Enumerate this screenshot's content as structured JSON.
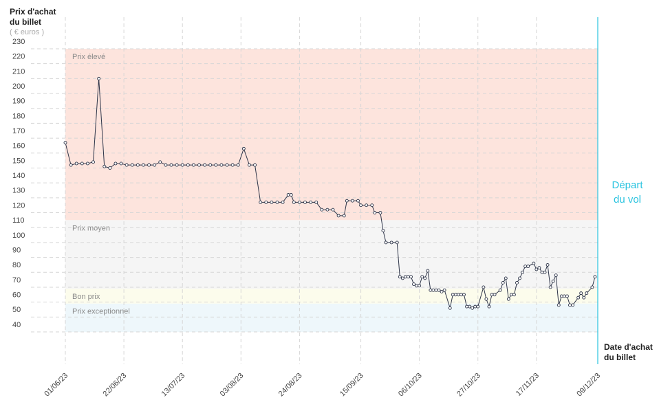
{
  "chart_data": {
    "type": "line",
    "y_label": [
      "Prix d'achat",
      "du billet"
    ],
    "y_unit": "( € euros )",
    "x_label": [
      "Date d'achat",
      "du billet"
    ],
    "ylim": [
      40,
      230
    ],
    "yticks": [
      40,
      50,
      60,
      70,
      80,
      90,
      100,
      110,
      120,
      130,
      140,
      150,
      160,
      170,
      180,
      190,
      200,
      210,
      220,
      230
    ],
    "xlim": [
      "01/06/23",
      "09/12/23"
    ],
    "xticks": [
      "01/06/23",
      "22/06/23",
      "13/07/23",
      "03/08/23",
      "24/08/23",
      "15/09/23",
      "06/10/23",
      "27/10/23",
      "17/11/23",
      "09/12/23"
    ],
    "grid": true,
    "color": "#2d3448",
    "bands": [
      {
        "label": "Prix élevé",
        "from": 115,
        "to": 230,
        "color": "#fde4dd"
      },
      {
        "label": "Prix moyen",
        "from": 69,
        "to": 115,
        "color": "#f5f5f5"
      },
      {
        "label": "Bon prix",
        "from": 59,
        "to": 69,
        "color": "#fcfcec"
      },
      {
        "label": "Prix exceptionnel",
        "from": 40,
        "to": 59,
        "color": "#eef7fb"
      }
    ],
    "departure": {
      "label": [
        "Départ",
        "du vol"
      ],
      "x": "09/12/23",
      "color": "#2bc4e0"
    },
    "x": [
      "01/06/23",
      "03/06/23",
      "05/06/23",
      "07/06/23",
      "09/06/23",
      "11/06/23",
      "13/06/23",
      "15/06/23",
      "17/06/23",
      "19/06/23",
      "21/06/23",
      "23/06/23",
      "25/06/23",
      "27/06/23",
      "29/06/23",
      "01/07/23",
      "03/07/23",
      "05/07/23",
      "07/07/23",
      "09/07/23",
      "11/07/23",
      "13/07/23",
      "15/07/23",
      "17/07/23",
      "19/07/23",
      "21/07/23",
      "23/07/23",
      "25/07/23",
      "27/07/23",
      "29/07/23",
      "31/07/23",
      "02/08/23",
      "04/08/23",
      "06/08/23",
      "08/08/23",
      "10/08/23",
      "12/08/23",
      "14/08/23",
      "16/08/23",
      "18/08/23",
      "20/08/23",
      "21/08/23",
      "22/08/23",
      "24/08/23",
      "26/08/23",
      "28/08/23",
      "30/08/23",
      "01/09/23",
      "03/09/23",
      "05/09/23",
      "07/09/23",
      "09/09/23",
      "10/09/23",
      "12/09/23",
      "14/09/23",
      "15/09/23",
      "17/09/23",
      "19/09/23",
      "20/09/23",
      "22/09/23",
      "23/09/23",
      "24/09/23",
      "26/09/23",
      "28/09/23",
      "29/09/23",
      "30/09/23",
      "01/10/23",
      "02/10/23",
      "03/10/23",
      "04/10/23",
      "05/10/23",
      "06/10/23",
      "07/10/23",
      "08/10/23",
      "09/10/23",
      "10/10/23",
      "11/10/23",
      "12/10/23",
      "13/10/23",
      "14/10/23",
      "15/10/23",
      "17/10/23",
      "18/10/23",
      "19/10/23",
      "20/10/23",
      "21/10/23",
      "22/10/23",
      "23/10/23",
      "24/10/23",
      "25/10/23",
      "26/10/23",
      "27/10/23",
      "29/10/23",
      "30/10/23",
      "31/10/23",
      "01/11/23",
      "02/11/23",
      "04/11/23",
      "05/11/23",
      "06/11/23",
      "07/11/23",
      "08/11/23",
      "09/11/23",
      "10/11/23",
      "11/11/23",
      "12/11/23",
      "13/11/23",
      "14/11/23",
      "16/11/23",
      "17/11/23",
      "18/11/23",
      "19/11/23",
      "20/11/23",
      "21/11/23",
      "22/11/23",
      "23/11/23",
      "24/11/23",
      "25/11/23",
      "26/11/23",
      "27/11/23",
      "28/11/23",
      "29/11/23",
      "30/11/23",
      "02/12/23",
      "03/12/23",
      "04/12/23",
      "05/12/23",
      "07/12/23",
      "08/12/23"
    ],
    "values": [
      167,
      152,
      153,
      153,
      153,
      154,
      210,
      151,
      150,
      153,
      153,
      152,
      152,
      152,
      152,
      152,
      152,
      154,
      152,
      152,
      152,
      152,
      152,
      152,
      152,
      152,
      152,
      152,
      152,
      152,
      152,
      152,
      163,
      152,
      152,
      127,
      127,
      127,
      127,
      127,
      132,
      132,
      127,
      127,
      127,
      127,
      127,
      122,
      122,
      122,
      118,
      118,
      128,
      128,
      128,
      125,
      125,
      125,
      120,
      120,
      108,
      100,
      100,
      100,
      77,
      76,
      77,
      77,
      77,
      72,
      71,
      71,
      77,
      76,
      81,
      68,
      68,
      68,
      68,
      67,
      68,
      56,
      65,
      65,
      65,
      65,
      65,
      57,
      57,
      56,
      57,
      57,
      70,
      62,
      57,
      65,
      65,
      68,
      73,
      76,
      62,
      65,
      65,
      73,
      76,
      80,
      84,
      84,
      86,
      82,
      83,
      80,
      80,
      85,
      70,
      74,
      78,
      58,
      64,
      64,
      64,
      58,
      58,
      63,
      66,
      63,
      66,
      70,
      77
    ]
  }
}
